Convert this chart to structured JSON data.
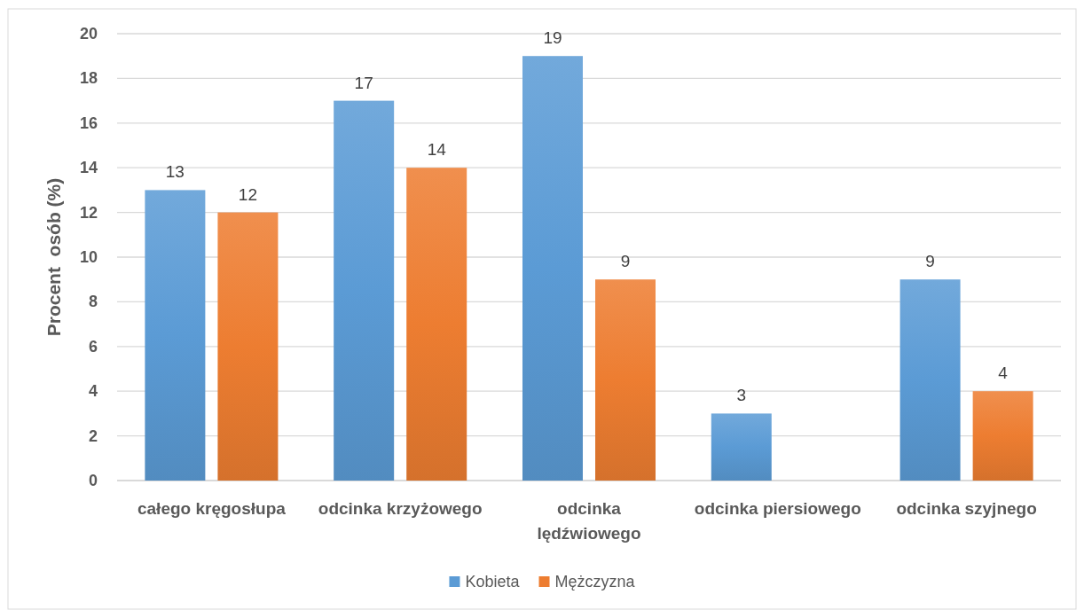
{
  "chart_data": {
    "type": "bar",
    "categories": [
      "całego kręgosłupa",
      "odcinka krzyżowego",
      "odcinka lędźwiowego",
      "odcinka piersiowego",
      "odcinka szyjnego"
    ],
    "series": [
      {
        "name": "Kobieta",
        "color": "#5b9bd5",
        "values": [
          13,
          17,
          19,
          3,
          9
        ]
      },
      {
        "name": "Mężczyzna",
        "color": "#ed7d31",
        "values": [
          12,
          14,
          9,
          null,
          4
        ]
      }
    ],
    "ylabel": "Procent  osób (%)",
    "ylim": [
      0,
      20
    ],
    "yticks": [
      0,
      2,
      4,
      6,
      8,
      10,
      12,
      14,
      16,
      18,
      20
    ],
    "grid": "y",
    "legend": "bottom",
    "data_labels": true
  }
}
